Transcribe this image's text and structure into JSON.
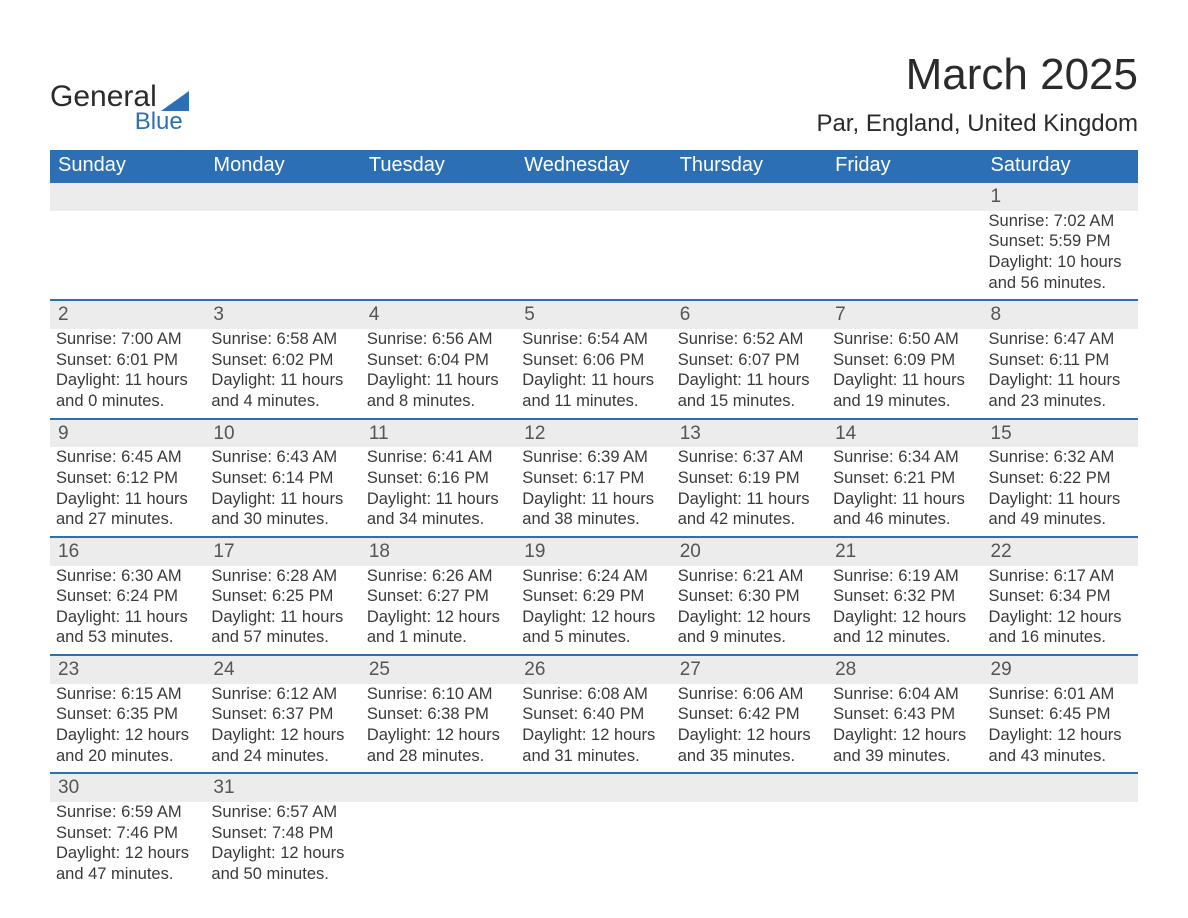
{
  "logo": {
    "word1": "General",
    "word2": "Blue"
  },
  "title": "March 2025",
  "location": "Par, England, United Kingdom",
  "colors": {
    "header_bg": "#2d6fb4",
    "header_text": "#ffffff",
    "daynum_bg": "#ececec",
    "row_border": "#2d6fb4",
    "body_text": "#3a3a3a",
    "page_bg": "#ffffff"
  },
  "typography": {
    "title_fontsize": 44,
    "subtitle_fontsize": 24,
    "header_fontsize": 20,
    "cell_fontsize": 16.5,
    "daynum_fontsize": 19
  },
  "weekdays": [
    "Sunday",
    "Monday",
    "Tuesday",
    "Wednesday",
    "Thursday",
    "Friday",
    "Saturday"
  ],
  "weeks": [
    [
      null,
      null,
      null,
      null,
      null,
      null,
      {
        "n": "1",
        "sr": "Sunrise: 7:02 AM",
        "ss": "Sunset: 5:59 PM",
        "d1": "Daylight: 10 hours",
        "d2": "and 56 minutes."
      }
    ],
    [
      {
        "n": "2",
        "sr": "Sunrise: 7:00 AM",
        "ss": "Sunset: 6:01 PM",
        "d1": "Daylight: 11 hours",
        "d2": "and 0 minutes."
      },
      {
        "n": "3",
        "sr": "Sunrise: 6:58 AM",
        "ss": "Sunset: 6:02 PM",
        "d1": "Daylight: 11 hours",
        "d2": "and 4 minutes."
      },
      {
        "n": "4",
        "sr": "Sunrise: 6:56 AM",
        "ss": "Sunset: 6:04 PM",
        "d1": "Daylight: 11 hours",
        "d2": "and 8 minutes."
      },
      {
        "n": "5",
        "sr": "Sunrise: 6:54 AM",
        "ss": "Sunset: 6:06 PM",
        "d1": "Daylight: 11 hours",
        "d2": "and 11 minutes."
      },
      {
        "n": "6",
        "sr": "Sunrise: 6:52 AM",
        "ss": "Sunset: 6:07 PM",
        "d1": "Daylight: 11 hours",
        "d2": "and 15 minutes."
      },
      {
        "n": "7",
        "sr": "Sunrise: 6:50 AM",
        "ss": "Sunset: 6:09 PM",
        "d1": "Daylight: 11 hours",
        "d2": "and 19 minutes."
      },
      {
        "n": "8",
        "sr": "Sunrise: 6:47 AM",
        "ss": "Sunset: 6:11 PM",
        "d1": "Daylight: 11 hours",
        "d2": "and 23 minutes."
      }
    ],
    [
      {
        "n": "9",
        "sr": "Sunrise: 6:45 AM",
        "ss": "Sunset: 6:12 PM",
        "d1": "Daylight: 11 hours",
        "d2": "and 27 minutes."
      },
      {
        "n": "10",
        "sr": "Sunrise: 6:43 AM",
        "ss": "Sunset: 6:14 PM",
        "d1": "Daylight: 11 hours",
        "d2": "and 30 minutes."
      },
      {
        "n": "11",
        "sr": "Sunrise: 6:41 AM",
        "ss": "Sunset: 6:16 PM",
        "d1": "Daylight: 11 hours",
        "d2": "and 34 minutes."
      },
      {
        "n": "12",
        "sr": "Sunrise: 6:39 AM",
        "ss": "Sunset: 6:17 PM",
        "d1": "Daylight: 11 hours",
        "d2": "and 38 minutes."
      },
      {
        "n": "13",
        "sr": "Sunrise: 6:37 AM",
        "ss": "Sunset: 6:19 PM",
        "d1": "Daylight: 11 hours",
        "d2": "and 42 minutes."
      },
      {
        "n": "14",
        "sr": "Sunrise: 6:34 AM",
        "ss": "Sunset: 6:21 PM",
        "d1": "Daylight: 11 hours",
        "d2": "and 46 minutes."
      },
      {
        "n": "15",
        "sr": "Sunrise: 6:32 AM",
        "ss": "Sunset: 6:22 PM",
        "d1": "Daylight: 11 hours",
        "d2": "and 49 minutes."
      }
    ],
    [
      {
        "n": "16",
        "sr": "Sunrise: 6:30 AM",
        "ss": "Sunset: 6:24 PM",
        "d1": "Daylight: 11 hours",
        "d2": "and 53 minutes."
      },
      {
        "n": "17",
        "sr": "Sunrise: 6:28 AM",
        "ss": "Sunset: 6:25 PM",
        "d1": "Daylight: 11 hours",
        "d2": "and 57 minutes."
      },
      {
        "n": "18",
        "sr": "Sunrise: 6:26 AM",
        "ss": "Sunset: 6:27 PM",
        "d1": "Daylight: 12 hours",
        "d2": "and 1 minute."
      },
      {
        "n": "19",
        "sr": "Sunrise: 6:24 AM",
        "ss": "Sunset: 6:29 PM",
        "d1": "Daylight: 12 hours",
        "d2": "and 5 minutes."
      },
      {
        "n": "20",
        "sr": "Sunrise: 6:21 AM",
        "ss": "Sunset: 6:30 PM",
        "d1": "Daylight: 12 hours",
        "d2": "and 9 minutes."
      },
      {
        "n": "21",
        "sr": "Sunrise: 6:19 AM",
        "ss": "Sunset: 6:32 PM",
        "d1": "Daylight: 12 hours",
        "d2": "and 12 minutes."
      },
      {
        "n": "22",
        "sr": "Sunrise: 6:17 AM",
        "ss": "Sunset: 6:34 PM",
        "d1": "Daylight: 12 hours",
        "d2": "and 16 minutes."
      }
    ],
    [
      {
        "n": "23",
        "sr": "Sunrise: 6:15 AM",
        "ss": "Sunset: 6:35 PM",
        "d1": "Daylight: 12 hours",
        "d2": "and 20 minutes."
      },
      {
        "n": "24",
        "sr": "Sunrise: 6:12 AM",
        "ss": "Sunset: 6:37 PM",
        "d1": "Daylight: 12 hours",
        "d2": "and 24 minutes."
      },
      {
        "n": "25",
        "sr": "Sunrise: 6:10 AM",
        "ss": "Sunset: 6:38 PM",
        "d1": "Daylight: 12 hours",
        "d2": "and 28 minutes."
      },
      {
        "n": "26",
        "sr": "Sunrise: 6:08 AM",
        "ss": "Sunset: 6:40 PM",
        "d1": "Daylight: 12 hours",
        "d2": "and 31 minutes."
      },
      {
        "n": "27",
        "sr": "Sunrise: 6:06 AM",
        "ss": "Sunset: 6:42 PM",
        "d1": "Daylight: 12 hours",
        "d2": "and 35 minutes."
      },
      {
        "n": "28",
        "sr": "Sunrise: 6:04 AM",
        "ss": "Sunset: 6:43 PM",
        "d1": "Daylight: 12 hours",
        "d2": "and 39 minutes."
      },
      {
        "n": "29",
        "sr": "Sunrise: 6:01 AM",
        "ss": "Sunset: 6:45 PM",
        "d1": "Daylight: 12 hours",
        "d2": "and 43 minutes."
      }
    ],
    [
      {
        "n": "30",
        "sr": "Sunrise: 6:59 AM",
        "ss": "Sunset: 7:46 PM",
        "d1": "Daylight: 12 hours",
        "d2": "and 47 minutes."
      },
      {
        "n": "31",
        "sr": "Sunrise: 6:57 AM",
        "ss": "Sunset: 7:48 PM",
        "d1": "Daylight: 12 hours",
        "d2": "and 50 minutes."
      },
      null,
      null,
      null,
      null,
      null
    ]
  ]
}
